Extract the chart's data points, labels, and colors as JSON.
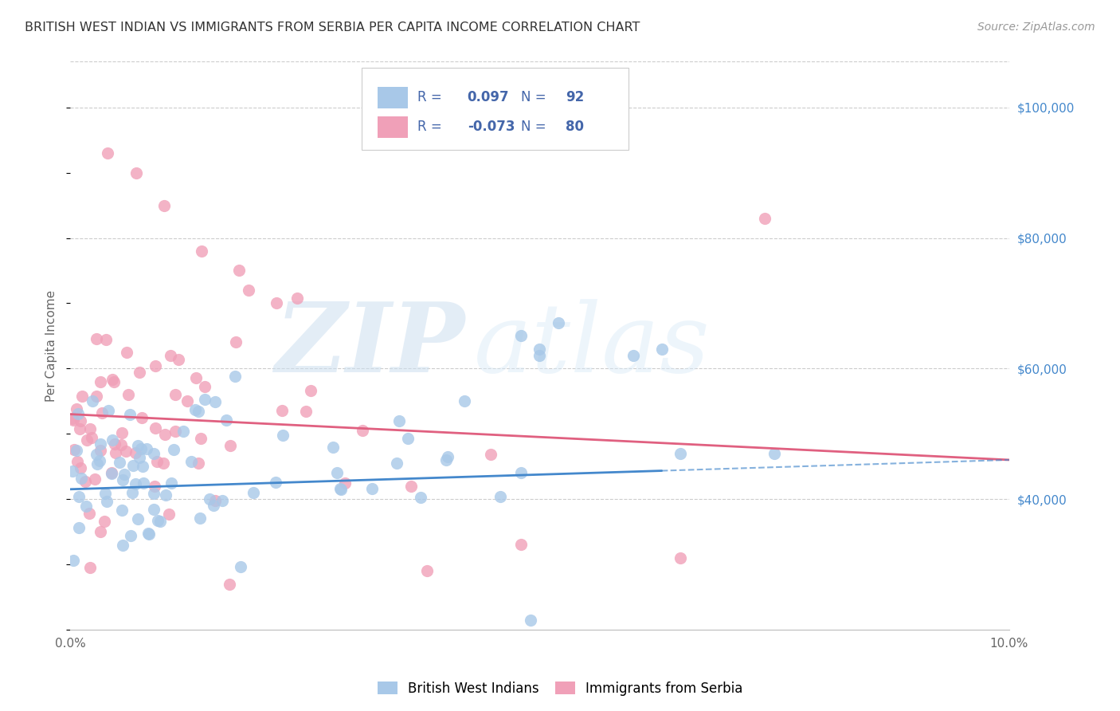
{
  "title": "BRITISH WEST INDIAN VS IMMIGRANTS FROM SERBIA PER CAPITA INCOME CORRELATION CHART",
  "source": "Source: ZipAtlas.com",
  "ylabel": "Per Capita Income",
  "watermark_zip": "ZIP",
  "watermark_atlas": "atlas",
  "xlim": [
    0.0,
    0.1
  ],
  "ylim": [
    20000,
    107000
  ],
  "yticks": [
    40000,
    60000,
    80000,
    100000
  ],
  "ytick_labels": [
    "$40,000",
    "$60,000",
    "$80,000",
    "$100,000"
  ],
  "xticks": [
    0.0,
    0.02,
    0.04,
    0.06,
    0.08,
    0.1
  ],
  "xtick_labels": [
    "0.0%",
    "",
    "",
    "",
    "",
    "10.0%"
  ],
  "blue_color": "#a8c8e8",
  "pink_color": "#f0a0b8",
  "blue_line_color": "#4488cc",
  "pink_line_color": "#e06080",
  "blue_r": 0.097,
  "blue_n": 92,
  "pink_r": -0.073,
  "pink_n": 80,
  "blue_label": "British West Indians",
  "pink_label": "Immigrants from Serbia",
  "legend_text_color": "#4466aa",
  "background_color": "#ffffff",
  "grid_color": "#cccccc",
  "title_color": "#333333",
  "right_tick_color": "#4488cc",
  "ylabel_color": "#666666",
  "seed": 7
}
